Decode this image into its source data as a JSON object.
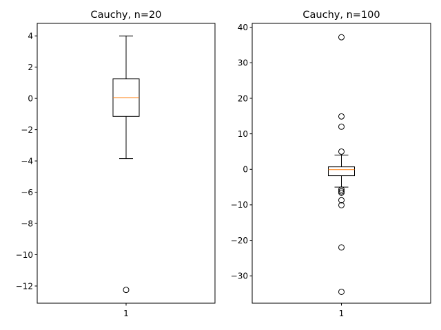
{
  "chart_data": [
    {
      "type": "box",
      "title": "Cauchy, n=20",
      "xlabel": "",
      "ylabel": "",
      "categories": [
        "1"
      ],
      "ylim": [
        -13.1,
        4.8
      ],
      "yticks": [
        4,
        2,
        0,
        -2,
        -4,
        -6,
        -8,
        -10,
        -12
      ],
      "yticklabels": [
        "4",
        "2",
        "0",
        "−2",
        "−4",
        "−6",
        "−8",
        "−10",
        "−12"
      ],
      "box": {
        "q1": -1.15,
        "median": 0.05,
        "q3": 1.25,
        "whisker_low": -3.85,
        "whisker_high": 4.0,
        "outliers": [
          -12.25
        ]
      },
      "median_color": "#ff7f0e"
    },
    {
      "type": "box",
      "title": "Cauchy, n=100",
      "xlabel": "",
      "ylabel": "",
      "categories": [
        "1"
      ],
      "ylim": [
        -37.7,
        41.1
      ],
      "yticks": [
        40,
        30,
        20,
        10,
        0,
        -10,
        -20,
        -30
      ],
      "yticklabels": [
        "40",
        "30",
        "20",
        "10",
        "0",
        "−10",
        "−20",
        "−30"
      ],
      "box": {
        "q1": -1.8,
        "median": -0.1,
        "q3": 0.7,
        "whisker_low": -5.0,
        "whisker_high": 4.0,
        "outliers": [
          37.2,
          14.9,
          12.0,
          5.0,
          -5.7,
          -6.2,
          -6.6,
          -8.7,
          -10.1,
          -22.0,
          -34.5
        ]
      },
      "median_color": "#ff7f0e"
    }
  ]
}
